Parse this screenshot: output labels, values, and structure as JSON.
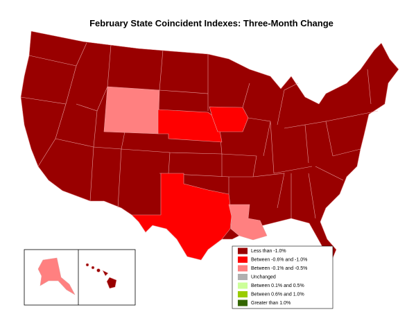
{
  "title": "February State Coincident Indexes: Three-Month Change",
  "legend": [
    {
      "label": "Less than -1.0%",
      "color": "#990000"
    },
    {
      "label": "Between -0.6% and -1.0%",
      "color": "#ff0000"
    },
    {
      "label": "Between -0.1% and -0.5%",
      "color": "#ff8080"
    },
    {
      "label": "Unchanged",
      "color": "#b0b0b0"
    },
    {
      "label": "Between 0.1% and 0.5%",
      "color": "#ccff99"
    },
    {
      "label": "Between 0.6% and 1.0%",
      "color": "#99cc00"
    },
    {
      "label": "Greater than 1.0%",
      "color": "#336600"
    }
  ]
}
